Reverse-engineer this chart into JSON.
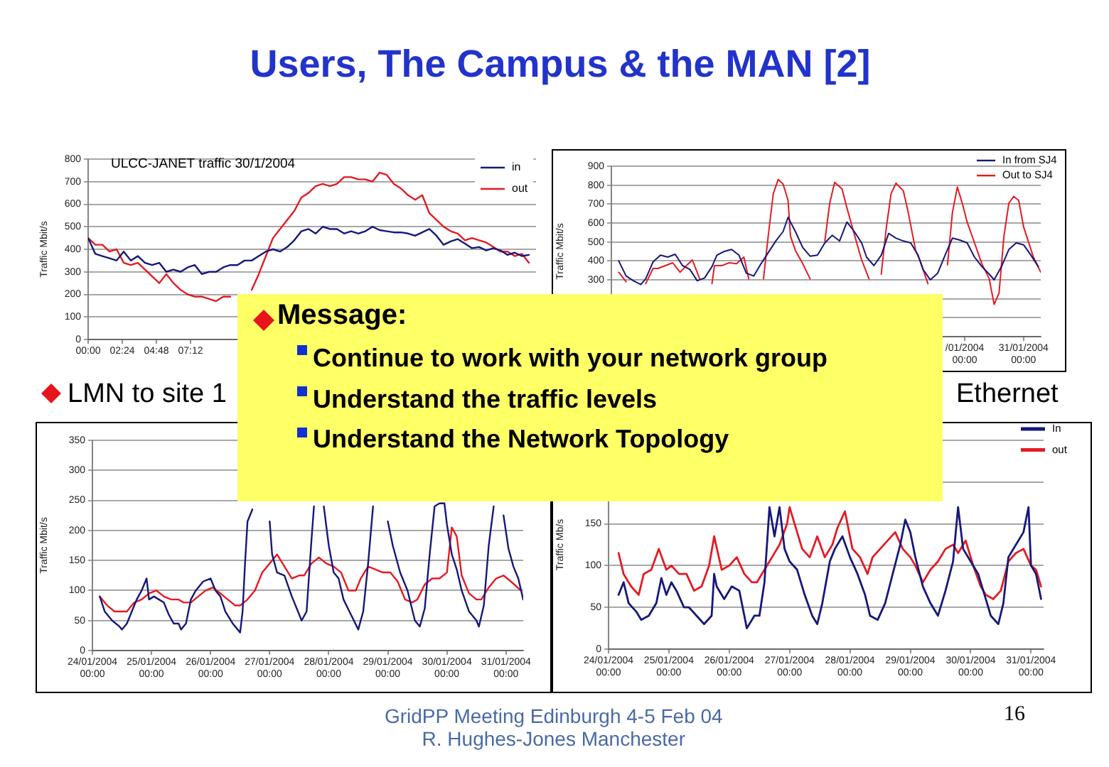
{
  "chart_data": [
    {
      "type": "other",
      "title": "Users, The Campus & the MAN [2]",
      "annotations": [
        "Message:",
        "Continue to work with your network group",
        "Understand the traffic levels",
        "Understand the Network Topology",
        "GridPP Meeting Edinburgh 4-5 Feb 04",
        "R. Hughes-Jones Manchester",
        "16"
      ]
    },
    {
      "type": "line",
      "title": "ULCC-JANET traffic 30/1/2004",
      "ylabel": "Traffic Mbit/s",
      "x": [
        0,
        0.5,
        1,
        1.5,
        2,
        2.5,
        3,
        3.5,
        4,
        4.5,
        5,
        5.5,
        6,
        6.5,
        7,
        7.5,
        8,
        8.5,
        9,
        9.5,
        10,
        10.5,
        11,
        11.5,
        12,
        12.5,
        13,
        13.5,
        14,
        14.5,
        15,
        15.5,
        16,
        16.5,
        17,
        17.5,
        18,
        18.5,
        19,
        19.5,
        20,
        20.5,
        21,
        21.5,
        22,
        22.5,
        23,
        23.5,
        24,
        24.5,
        25,
        25.5,
        26,
        26.5,
        27,
        27.5,
        28,
        28.5,
        29,
        29.5,
        30,
        30.5,
        31
      ],
      "series": [
        {
          "name": "in",
          "color": "#16187a",
          "values": [
            450,
            380,
            370,
            360,
            350,
            390,
            350,
            370,
            340,
            330,
            340,
            300,
            310,
            300,
            320,
            330,
            290,
            300,
            300,
            320,
            330,
            330,
            350,
            350,
            370,
            390,
            400,
            390,
            410,
            440,
            480,
            490,
            470,
            500,
            490,
            490,
            470,
            480,
            470,
            480,
            500,
            485,
            480,
            475,
            475,
            470,
            460,
            475,
            490,
            460,
            420,
            435,
            445,
            425,
            405,
            410,
            395,
            405,
            395,
            375,
            385,
            370,
            375
          ]
        },
        {
          "name": "out",
          "color": "#e31b23",
          "values": [
            450,
            420,
            420,
            390,
            400,
            340,
            330,
            340,
            310,
            280,
            250,
            290,
            250,
            220,
            200,
            190,
            190,
            180,
            170,
            190,
            190,
            null,
            null,
            220,
            290,
            370,
            450,
            490,
            530,
            570,
            630,
            650,
            680,
            690,
            680,
            690,
            720,
            720,
            710,
            710,
            700,
            740,
            730,
            690,
            670,
            640,
            620,
            640,
            560,
            530,
            500,
            480,
            470,
            440,
            450,
            440,
            430,
            410,
            390,
            390,
            370,
            380,
            340
          ]
        }
      ],
      "xlim": [
        0,
        31.5
      ],
      "xticks": [
        {
          "value": 0,
          "label": "00:00"
        },
        {
          "value": 2.4,
          "label": "02:24"
        },
        {
          "value": 4.8,
          "label": "04:48"
        },
        {
          "value": 7.2,
          "label": "07:12"
        }
      ],
      "ylim": [
        0,
        800
      ],
      "yticks": [
        0,
        100,
        200,
        300,
        400,
        500,
        600,
        700,
        800
      ],
      "grid": "y",
      "legend": "top right"
    },
    {
      "type": "line",
      "ylabel": "Traffic Mbit/s",
      "series": [
        {
          "name": "In from SJ4",
          "color": "#16187a",
          "x": [
            "2004-01-24T03:00",
            "2004-01-24T06:00",
            "2004-01-24T09:00",
            "2004-01-24T12:00",
            "2004-01-24T14:00",
            "2004-01-24T17:00",
            "2004-01-24T20:00",
            "2004-01-24T23:00",
            "2004-01-25T02:00",
            "2004-01-25T05:00",
            "2004-01-25T08:00",
            "2004-01-25T11:00",
            "2004-01-25T14:00",
            "2004-01-25T17:00",
            "2004-01-25T19:00",
            "2004-01-25T22:00",
            "2004-01-26T01:00",
            "2004-01-26T04:00",
            "2004-01-26T07:00",
            "2004-01-26T10:00",
            "2004-01-26T13:00",
            "2004-01-26T16:00",
            "2004-01-26T19:00",
            "2004-01-26T22:00",
            "2004-01-27T00:00",
            "2004-01-27T03:00",
            "2004-01-27T06:00",
            "2004-01-27T09:00",
            "2004-01-27T12:00",
            "2004-01-27T15:00",
            "2004-01-27T18:00",
            "2004-01-27T21:00",
            "2004-01-28T00:00",
            "2004-01-28T03:00",
            "2004-01-28T06:00",
            "2004-01-28T08:00",
            "2004-01-28T11:00",
            "2004-01-28T14:00",
            "2004-01-28T17:00",
            "2004-01-28T20:00",
            "2004-01-28T23:00",
            "2004-01-29T02:00",
            "2004-01-29T05:00",
            "2004-01-29T07:00",
            "2004-01-29T10:00",
            "2004-01-29T13:00",
            "2004-01-29T16:00",
            "2004-01-29T19:00",
            "2004-01-29T22:00",
            "2004-01-30T01:00",
            "2004-01-30T04:00",
            "2004-01-30T07:00",
            "2004-01-30T10:00",
            "2004-01-30T12:00",
            "2004-01-30T15:00",
            "2004-01-30T18:00",
            "2004-01-30T21:00",
            "2004-01-31T00:00",
            "2004-01-31T03:00",
            "2004-01-31T06:00"
          ],
          "values": [
            400,
            320,
            295,
            275,
            305,
            395,
            430,
            420,
            435,
            375,
            355,
            295,
            310,
            370,
            430,
            450,
            460,
            430,
            335,
            320,
            385,
            445,
            505,
            555,
            630,
            555,
            470,
            425,
            430,
            495,
            535,
            505,
            605,
            555,
            495,
            420,
            375,
            430,
            545,
            520,
            505,
            495,
            430,
            355,
            300,
            335,
            430,
            520,
            510,
            495,
            420,
            370,
            330,
            300,
            370,
            460,
            495,
            485,
            430,
            370
          ]
        },
        {
          "name": "Out to SJ4",
          "color": "#e31b23",
          "x": [
            "2004-01-24T03:00",
            "2004-01-24T06:00",
            "2004-01-24T08:00",
            "2004-01-24T14:00",
            "2004-01-24T17:00",
            "2004-01-24T19:00",
            "2004-01-24T22:00",
            "2004-01-25T01:00",
            "2004-01-25T04:00",
            "2004-01-25T07:00",
            "2004-01-25T09:00",
            "2004-01-25T12:00",
            "2004-01-25T14:00",
            "2004-01-25T17:00",
            "2004-01-25T18:00",
            "2004-01-25T21:00",
            "2004-01-26T00:00",
            "2004-01-26T03:00",
            "2004-01-26T06:00",
            "2004-01-26T08:00",
            "2004-01-26T10:00",
            "2004-01-26T14:00",
            "2004-01-26T16:00",
            "2004-01-26T18:00",
            "2004-01-26T20:00",
            "2004-01-26T22:00",
            "2004-01-27T00:00",
            "2004-01-27T01:00",
            "2004-01-27T03:00",
            "2004-01-27T06:00",
            "2004-01-27T09:00",
            "2004-01-27T11:00",
            "2004-01-27T15:00",
            "2004-01-27T17:00",
            "2004-01-27T19:00",
            "2004-01-27T22:00",
            "2004-01-28T00:00",
            "2004-01-28T04:00",
            "2004-01-28T06:00",
            "2004-01-28T09:00",
            "2004-01-28T11:00",
            "2004-01-28T14:00",
            "2004-01-28T16:00",
            "2004-01-28T18:00",
            "2004-01-28T20:00",
            "2004-01-28T23:00",
            "2004-01-29T01:00",
            "2004-01-29T04:00",
            "2004-01-29T06:00",
            "2004-01-29T09:00",
            "2004-01-29T12:00",
            "2004-01-29T17:00",
            "2004-01-29T19:00",
            "2004-01-29T21:00",
            "2004-01-29T23:00",
            "2004-01-30T01:00",
            "2004-01-30T04:00",
            "2004-01-30T07:00",
            "2004-01-30T10:00",
            "2004-01-30T12:00",
            "2004-01-30T14:00",
            "2004-01-30T16:00",
            "2004-01-30T18:00",
            "2004-01-30T20:00",
            "2004-01-30T22:00",
            "2004-01-31T00:00",
            "2004-01-31T02:00",
            "2004-01-31T04:00",
            "2004-01-31T07:00"
          ],
          "values": [
            340,
            290,
            null,
            280,
            360,
            360,
            375,
            390,
            340,
            380,
            405,
            305,
            null,
            280,
            375,
            375,
            390,
            385,
            420,
            305,
            null,
            305,
            540,
            755,
            830,
            805,
            720,
            530,
            455,
            385,
            305,
            null,
            505,
            705,
            815,
            780,
            680,
            495,
            405,
            305,
            null,
            330,
            570,
            755,
            810,
            770,
            655,
            455,
            395,
            280,
            null,
            380,
            655,
            790,
            705,
            605,
            495,
            385,
            305,
            170,
            230,
            530,
            705,
            740,
            720,
            580,
            500,
            420,
            340
          ]
        }
      ],
      "xlim": [
        "2004-01-24T00:00",
        "2004-01-31T07:00"
      ],
      "xticks": [
        {
          "value": "2004-01-30T00:00",
          "label": "/01/2004 00:00"
        },
        {
          "value": "2004-01-31T00:00",
          "label": "31/01/2004 00:00"
        }
      ],
      "ylim": [
        0,
        900
      ],
      "yticks": [
        {
          "value": 0,
          "label": null
        },
        {
          "value": 100,
          "label": null
        },
        {
          "value": 200,
          "label": null
        },
        300,
        400,
        500,
        600,
        700,
        800,
        900
      ],
      "grid": "y",
      "legend": "top right"
    },
    {
      "type": "line",
      "title": "LMN to site 1",
      "ylabel": "Traffic Mbit/s",
      "series": [
        {
          "color": "#16187a",
          "x": [
            "2004-01-24T03:00",
            "2004-01-24T05:00",
            "2004-01-24T08:00",
            "2004-01-24T11:00",
            "2004-01-24T12:00",
            "2004-01-24T14:00",
            "2004-01-24T16:00",
            "2004-01-24T18:00",
            "2004-01-24T20:00",
            "2004-01-24T22:00",
            "2004-01-24T23:00",
            "2004-01-25T01:00",
            "2004-01-25T03:00",
            "2004-01-25T05:00",
            "2004-01-25T07:00",
            "2004-01-25T09:00",
            "2004-01-25T11:00",
            "2004-01-25T12:00",
            "2004-01-25T14:00",
            "2004-01-25T16:00",
            "2004-01-25T18:00",
            "2004-01-25T21:00",
            "2004-01-26T00:00",
            "2004-01-26T02:00",
            "2004-01-26T04:00",
            "2004-01-26T06:00",
            "2004-01-26T09:00",
            "2004-01-26T12:00",
            "2004-01-26T13:00",
            "2004-01-26T14:00",
            "2004-01-26T15:00",
            "2004-01-26T17:00",
            "2004-01-26T18:00",
            "2004-01-27T00:00",
            "2004-01-27T01:00",
            "2004-01-27T03:00",
            "2004-01-27T06:00",
            "2004-01-27T09:00",
            "2004-01-27T12:00",
            "2004-01-27T13:00",
            "2004-01-27T15:00",
            "2004-01-27T17:00",
            "2004-01-27T18:00",
            "2004-01-27T20:00",
            "2004-01-27T22:00",
            "2004-01-28T00:00",
            "2004-01-28T02:00",
            "2004-01-28T04:00",
            "2004-01-28T06:00",
            "2004-01-28T09:00",
            "2004-01-28T12:00",
            "2004-01-28T14:00",
            "2004-01-28T16:00",
            "2004-01-28T18:00",
            "2004-01-28T20:00",
            "2004-01-29T00:00",
            "2004-01-29T02:00",
            "2004-01-29T05:00",
            "2004-01-29T08:00",
            "2004-01-29T11:00",
            "2004-01-29T13:00",
            "2004-01-29T15:00",
            "2004-01-29T17:00",
            "2004-01-29T19:00",
            "2004-01-29T21:00",
            "2004-01-29T23:00",
            "2004-01-30T00:00",
            "2004-01-30T02:00",
            "2004-01-30T04:00",
            "2004-01-30T06:00",
            "2004-01-30T09:00",
            "2004-01-30T12:00",
            "2004-01-30T13:00",
            "2004-01-30T15:00",
            "2004-01-30T17:00",
            "2004-01-30T19:00",
            "2004-01-30T21:00",
            "2004-01-30T23:00",
            "2004-01-31T01:00",
            "2004-01-31T03:00",
            "2004-01-31T05:00",
            "2004-01-31T07:00"
          ],
          "values": [
            90,
            65,
            50,
            40,
            35,
            45,
            65,
            85,
            100,
            120,
            85,
            90,
            85,
            80,
            60,
            45,
            45,
            35,
            45,
            85,
            100,
            115,
            120,
            100,
            90,
            65,
            45,
            30,
            65,
            145,
            215,
            235,
            null,
            215,
            160,
            130,
            125,
            90,
            60,
            50,
            65,
            185,
            240,
            null,
            240,
            175,
            130,
            120,
            85,
            60,
            35,
            65,
            145,
            240,
            null,
            215,
            175,
            130,
            100,
            50,
            40,
            70,
            160,
            240,
            245,
            245,
            210,
            160,
            135,
            100,
            65,
            50,
            40,
            75,
            175,
            240,
            null,
            225,
            170,
            140,
            120,
            85
          ]
        },
        {
          "color": "#e31b23",
          "x": [
            "2004-01-24T03:00",
            "2004-01-24T06:00",
            "2004-01-24T09:00",
            "2004-01-24T12:00",
            "2004-01-24T14:00",
            "2004-01-24T17:00",
            "2004-01-24T20:00",
            "2004-01-24T23:00",
            "2004-01-25T02:00",
            "2004-01-25T05:00",
            "2004-01-25T08:00",
            "2004-01-25T11:00",
            "2004-01-25T13:00",
            "2004-01-25T16:00",
            "2004-01-25T19:00",
            "2004-01-25T22:00",
            "2004-01-26T01:00",
            "2004-01-26T04:00",
            "2004-01-26T07:00",
            "2004-01-26T10:00",
            "2004-01-26T12:00",
            "2004-01-26T15:00",
            "2004-01-26T18:00",
            "2004-01-26T21:00",
            "2004-01-27T00:00",
            "2004-01-27T03:00",
            "2004-01-27T06:00",
            "2004-01-27T09:00",
            "2004-01-27T12:00",
            "2004-01-27T14:00",
            "2004-01-27T17:00",
            "2004-01-27T20:00",
            "2004-01-27T23:00",
            "2004-01-28T02:00",
            "2004-01-28T05:00",
            "2004-01-28T08:00",
            "2004-01-28T11:00",
            "2004-01-28T13:00",
            "2004-01-28T16:00",
            "2004-01-28T19:00",
            "2004-01-28T22:00",
            "2004-01-29T01:00",
            "2004-01-29T04:00",
            "2004-01-29T07:00",
            "2004-01-29T10:00",
            "2004-01-29T12:00",
            "2004-01-29T15:00",
            "2004-01-29T18:00",
            "2004-01-29T21:00",
            "2004-01-30T00:00",
            "2004-01-30T02:00",
            "2004-01-30T04:00",
            "2004-01-30T06:00",
            "2004-01-30T09:00",
            "2004-01-30T12:00",
            "2004-01-30T14:00",
            "2004-01-30T17:00",
            "2004-01-30T20:00",
            "2004-01-30T23:00",
            "2004-01-31T02:00",
            "2004-01-31T06:00"
          ],
          "values": [
            90,
            75,
            65,
            65,
            65,
            80,
            85,
            95,
            100,
            90,
            85,
            85,
            80,
            80,
            90,
            100,
            105,
            95,
            85,
            75,
            75,
            85,
            100,
            130,
            145,
            160,
            140,
            120,
            125,
            125,
            145,
            155,
            145,
            140,
            130,
            100,
            100,
            120,
            140,
            135,
            130,
            130,
            115,
            85,
            80,
            85,
            110,
            120,
            120,
            130,
            205,
            190,
            125,
            95,
            85,
            85,
            105,
            120,
            125,
            115,
            100
          ]
        }
      ],
      "xlim": [
        "2004-01-24T00:00",
        "2004-01-31T07:00"
      ],
      "xticks": [
        {
          "value": "2004-01-24T00:00",
          "label": "24/01/2004 00:00"
        },
        {
          "value": "2004-01-25T00:00",
          "label": "25/01/2004 00:00"
        },
        {
          "value": "2004-01-26T00:00",
          "label": "26/01/2004 00:00"
        },
        {
          "value": "2004-01-27T00:00",
          "label": "27/01/2004 00:00"
        },
        {
          "value": "2004-01-28T00:00",
          "label": "28/01/2004 00:00"
        },
        {
          "value": "2004-01-29T00:00",
          "label": "29/01/2004 00:00"
        },
        {
          "value": "2004-01-30T00:00",
          "label": "30/01/2004 00:00"
        },
        {
          "value": "2004-01-31T00:00",
          "label": "31/01/2004 00:00"
        }
      ],
      "ylim": [
        0,
        350
      ],
      "yticks": [
        0,
        50,
        100,
        150,
        200,
        250,
        300,
        350
      ],
      "grid": "y"
    },
    {
      "type": "line",
      "title": "Ethernet",
      "ylabel": "Traffic Mb/s",
      "series": [
        {
          "name": "In",
          "color": "#16187a",
          "x": [
            "2004-01-24T04:00",
            "2004-01-24T06:00",
            "2004-01-24T08:00",
            "2004-01-24T11:00",
            "2004-01-24T13:00",
            "2004-01-24T16:00",
            "2004-01-24T19:00",
            "2004-01-24T21:00",
            "2004-01-24T23:00",
            "2004-01-25T01:00",
            "2004-01-25T03:00",
            "2004-01-25T06:00",
            "2004-01-25T08:00",
            "2004-01-25T11:00",
            "2004-01-25T14:00",
            "2004-01-25T17:00",
            "2004-01-25T18:00",
            "2004-01-25T19:00",
            "2004-01-25T22:00",
            "2004-01-26T01:00",
            "2004-01-26T04:00",
            "2004-01-26T07:00",
            "2004-01-26T10:00",
            "2004-01-26T12:00",
            "2004-01-26T14:00",
            "2004-01-26T16:00",
            "2004-01-26T18:00",
            "2004-01-26T20:00",
            "2004-01-26T22:00",
            "2004-01-27T00:00",
            "2004-01-27T03:00",
            "2004-01-27T06:00",
            "2004-01-27T09:00",
            "2004-01-27T11:00",
            "2004-01-27T13:00",
            "2004-01-27T16:00",
            "2004-01-27T18:00",
            "2004-01-27T21:00",
            "2004-01-28T00:00",
            "2004-01-28T03:00",
            "2004-01-28T06:00",
            "2004-01-28T08:00",
            "2004-01-28T11:00",
            "2004-01-28T14:00",
            "2004-01-28T17:00",
            "2004-01-28T20:00",
            "2004-01-28T22:00",
            "2004-01-29T00:00",
            "2004-01-29T02:00",
            "2004-01-29T05:00",
            "2004-01-29T08:00",
            "2004-01-29T11:00",
            "2004-01-29T14:00",
            "2004-01-29T17:00",
            "2004-01-29T19:00",
            "2004-01-29T21:00",
            "2004-01-30T00:00",
            "2004-01-30T03:00",
            "2004-01-30T06:00",
            "2004-01-30T08:00",
            "2004-01-30T11:00",
            "2004-01-30T13:00",
            "2004-01-30T15:00",
            "2004-01-30T18:00",
            "2004-01-30T21:00",
            "2004-01-30T23:00",
            "2004-01-31T00:00",
            "2004-01-31T02:00",
            "2004-01-31T04:00"
          ],
          "values": [
            65,
            80,
            55,
            45,
            35,
            40,
            55,
            85,
            65,
            80,
            70,
            50,
            50,
            40,
            30,
            40,
            90,
            75,
            60,
            75,
            70,
            25,
            40,
            40,
            80,
            170,
            135,
            170,
            120,
            105,
            95,
            65,
            40,
            30,
            55,
            105,
            120,
            135,
            110,
            90,
            65,
            40,
            35,
            55,
            90,
            125,
            155,
            140,
            110,
            75,
            55,
            40,
            70,
            105,
            170,
            120,
            105,
            90,
            60,
            40,
            30,
            55,
            110,
            125,
            140,
            170,
            100,
            90,
            60
          ]
        },
        {
          "name": "out",
          "color": "#e31b23",
          "x": [
            "2004-01-24T04:00",
            "2004-01-24T06:00",
            "2004-01-24T09:00",
            "2004-01-24T12:00",
            "2004-01-24T14:00",
            "2004-01-24T17:00",
            "2004-01-24T20:00",
            "2004-01-24T23:00",
            "2004-01-25T01:00",
            "2004-01-25T04:00",
            "2004-01-25T07:00",
            "2004-01-25T10:00",
            "2004-01-25T13:00",
            "2004-01-25T16:00",
            "2004-01-25T18:00",
            "2004-01-25T21:00",
            "2004-01-26T00:00",
            "2004-01-26T03:00",
            "2004-01-26T06:00",
            "2004-01-26T09:00",
            "2004-01-26T11:00",
            "2004-01-26T14:00",
            "2004-01-26T17:00",
            "2004-01-26T20:00",
            "2004-01-26T23:00",
            "2004-01-27T00:00",
            "2004-01-27T02:00",
            "2004-01-27T05:00",
            "2004-01-27T08:00",
            "2004-01-27T11:00",
            "2004-01-27T14:00",
            "2004-01-27T17:00",
            "2004-01-27T19:00",
            "2004-01-27T22:00",
            "2004-01-28T01:00",
            "2004-01-28T04:00",
            "2004-01-28T07:00",
            "2004-01-28T09:00",
            "2004-01-28T12:00",
            "2004-01-28T15:00",
            "2004-01-28T18:00",
            "2004-01-28T21:00",
            "2004-01-29T00:00",
            "2004-01-29T02:00",
            "2004-01-29T05:00",
            "2004-01-29T08:00",
            "2004-01-29T11:00",
            "2004-01-29T14:00",
            "2004-01-29T17:00",
            "2004-01-29T19:00",
            "2004-01-29T22:00",
            "2004-01-30T01:00",
            "2004-01-30T04:00",
            "2004-01-30T06:00",
            "2004-01-30T09:00",
            "2004-01-30T12:00",
            "2004-01-30T15:00",
            "2004-01-30T18:00",
            "2004-01-30T21:00",
            "2004-01-31T00:00",
            "2004-01-31T02:00",
            "2004-01-31T04:00"
          ],
          "values": [
            115,
            90,
            75,
            65,
            90,
            95,
            120,
            95,
            100,
            90,
            90,
            70,
            75,
            100,
            135,
            95,
            100,
            110,
            90,
            80,
            80,
            95,
            110,
            125,
            150,
            170,
            150,
            120,
            110,
            135,
            110,
            125,
            145,
            165,
            120,
            110,
            90,
            110,
            120,
            130,
            140,
            120,
            110,
            100,
            80,
            95,
            105,
            120,
            125,
            115,
            130,
            100,
            75,
            65,
            60,
            70,
            105,
            115,
            120,
            100,
            95,
            75
          ]
        }
      ],
      "xlim": [
        "2004-01-24T00:00",
        "2004-01-31T05:00"
      ],
      "xticks": [
        {
          "value": "2004-01-24T00:00",
          "label": "24/01/2004 00:00"
        },
        {
          "value": "2004-01-25T00:00",
          "label": "25/01/2004 00:00"
        },
        {
          "value": "2004-01-26T00:00",
          "label": "26/01/2004 00:00"
        },
        {
          "value": "2004-01-27T00:00",
          "label": "27/01/2004 00:00"
        },
        {
          "value": "2004-01-28T00:00",
          "label": "28/01/2004 00:00"
        },
        {
          "value": "2004-01-29T00:00",
          "label": "29/01/2004 00:00"
        },
        {
          "value": "2004-01-30T00:00",
          "label": "30/01/2004 00:00"
        },
        {
          "value": "2004-01-31T00:00",
          "label": "31/01/2004 00:00"
        }
      ],
      "ylim": [
        0,
        250
      ],
      "yticks": [
        0,
        50,
        100,
        150,
        {
          "value": 200,
          "label": null
        },
        {
          "value": 250,
          "label": null
        }
      ],
      "grid": "y",
      "legend": "top right"
    }
  ]
}
